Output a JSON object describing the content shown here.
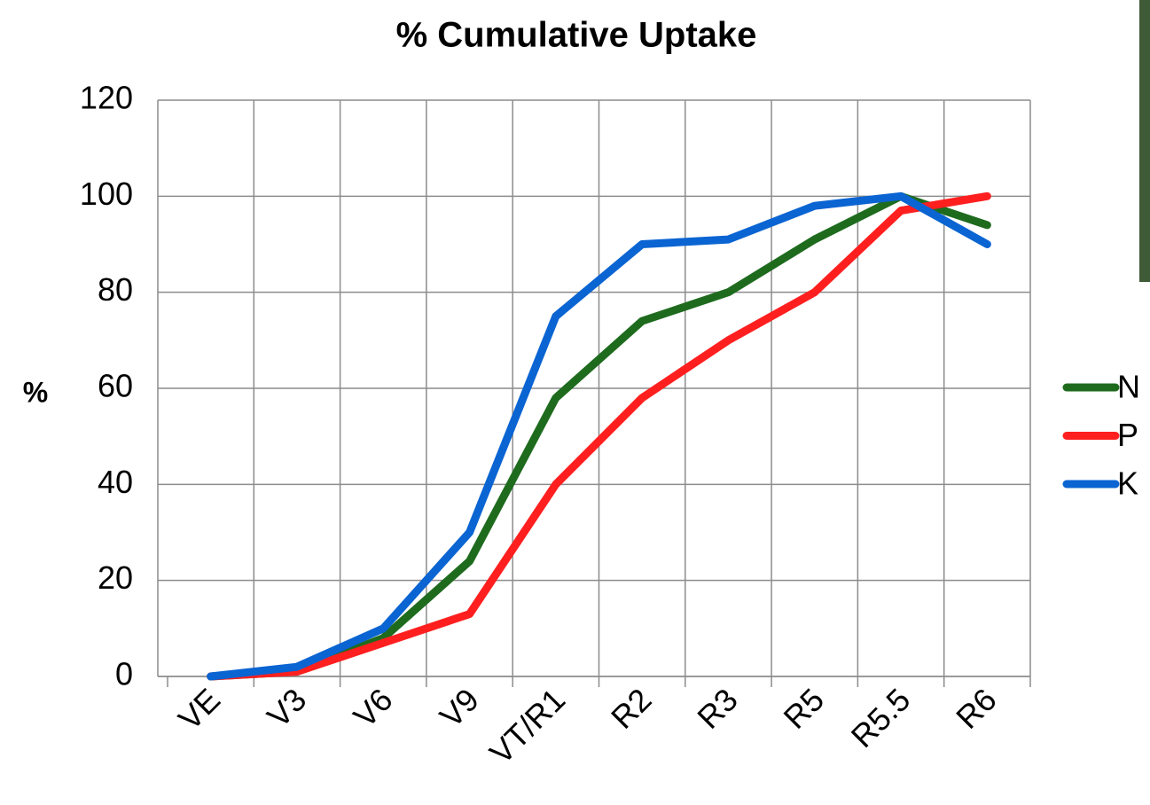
{
  "chart_data": {
    "type": "line",
    "title": "% Cumulative Uptake",
    "y_label": "%",
    "categories": [
      "VE",
      "V3",
      "V6",
      "V9",
      "VT/R1",
      "R2",
      "R3",
      "R5",
      "R5.5",
      "R6"
    ],
    "series": [
      {
        "name": "N",
        "color": "#1e6b1e",
        "values": [
          0,
          1,
          8,
          24,
          58,
          74,
          80,
          91,
          100,
          94
        ]
      },
      {
        "name": "P",
        "color": "#ff1f1f",
        "values": [
          0,
          1,
          7,
          13,
          40,
          58,
          70,
          80,
          97,
          100
        ]
      },
      {
        "name": "K",
        "color": "#0a64d2",
        "values": [
          0,
          2,
          10,
          30,
          75,
          90,
          91,
          98,
          100,
          90
        ]
      }
    ],
    "ylim": [
      0,
      120
    ],
    "yticks": [
      0,
      20,
      40,
      60,
      80,
      100,
      120
    ],
    "grid": true,
    "legend": "right"
  }
}
